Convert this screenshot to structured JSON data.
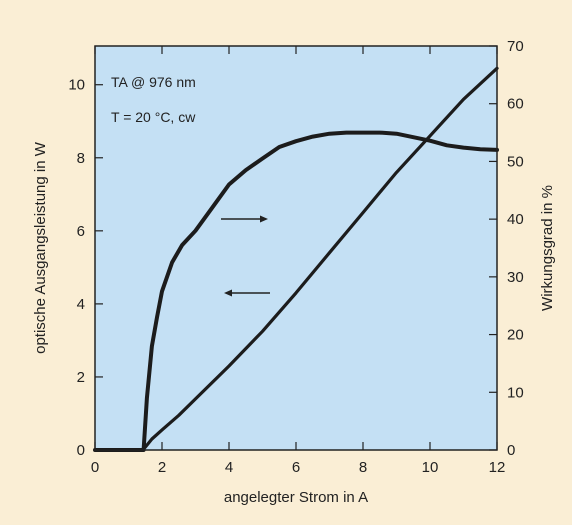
{
  "chart_data": {
    "type": "line",
    "title": "",
    "xlabel": "angelegter Strom in A",
    "ylabel_left": "optische Ausgangsleistung in W",
    "ylabel_right": "Wirkungsgrad in %",
    "xlim": [
      0,
      12
    ],
    "ylim_left": [
      0,
      11.06
    ],
    "ylim_right": [
      0,
      70
    ],
    "x_ticks": [
      0,
      2,
      4,
      6,
      8,
      10,
      12
    ],
    "y_left_ticks": [
      0,
      2,
      4,
      6,
      8,
      10
    ],
    "y_right_ticks": [
      0,
      10,
      20,
      30,
      40,
      50,
      60,
      70
    ],
    "grid": false,
    "annotations": [
      "TA @ 976 nm",
      "T = 20 °C, cw"
    ],
    "series": [
      {
        "axis": "left",
        "x": [
          0.0,
          1.0,
          1.4,
          1.5,
          1.7,
          2.0,
          2.5,
          3.0,
          4.0,
          5.0,
          6.0,
          7.0,
          8.0,
          9.0,
          10.0,
          11.0,
          12.0
        ],
        "y": [
          0.0,
          0.0,
          0.0,
          0.08,
          0.3,
          0.55,
          0.95,
          1.4,
          2.3,
          3.25,
          4.3,
          5.4,
          6.5,
          7.6,
          8.6,
          9.6,
          10.45
        ]
      },
      {
        "axis": "right",
        "x": [
          0.0,
          1.0,
          1.45,
          1.55,
          1.7,
          1.85,
          2.0,
          2.3,
          2.6,
          3.0,
          3.5,
          4.0,
          4.5,
          5.0,
          5.5,
          6.0,
          6.5,
          7.0,
          7.5,
          8.0,
          8.5,
          9.0,
          9.5,
          10.0,
          10.5,
          11.0,
          11.5,
          12.0
        ],
        "y": [
          0.0,
          0.0,
          0.0,
          9.0,
          18.0,
          23.0,
          27.5,
          32.5,
          35.5,
          38.0,
          42.0,
          46.0,
          48.5,
          50.5,
          52.5,
          53.5,
          54.3,
          54.8,
          55.0,
          55.0,
          55.0,
          54.8,
          54.2,
          53.6,
          52.8,
          52.4,
          52.1,
          52.0
        ]
      }
    ]
  }
}
